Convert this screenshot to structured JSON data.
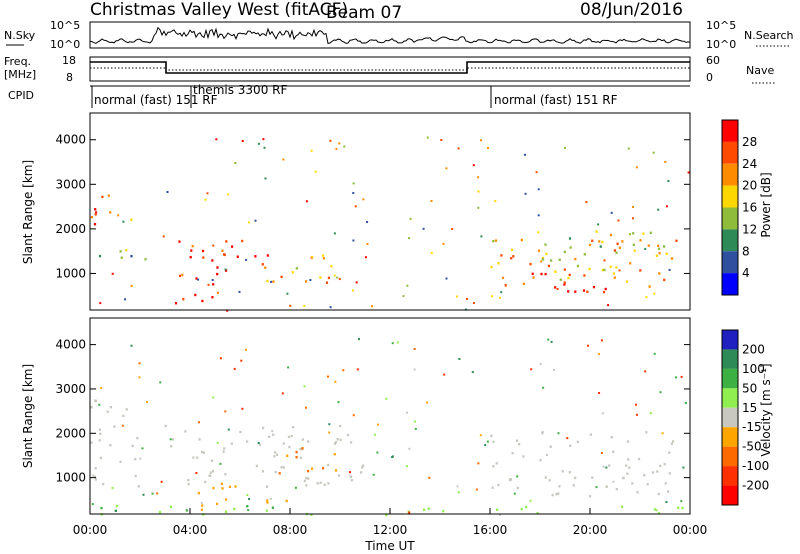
{
  "header": {
    "station": "Christmas Valley West (fitACF)",
    "beam": "Beam 07",
    "date": "08/Jun/2016"
  },
  "strips": {
    "nsky": {
      "label": "N.Sky",
      "tick_top": "10^5",
      "tick_bottom": "10^0"
    },
    "nsearch": {
      "label": "N.Search",
      "tick_top": "10^5",
      "tick_bottom": "10^0"
    },
    "freq": {
      "label_line1": "Freq.",
      "label_line2": "[MHz]",
      "tick_top": "18",
      "tick_bottom": "8"
    },
    "nave": {
      "label": "Nave",
      "tick_top": "60",
      "tick_bottom": "0"
    },
    "cpid": {
      "label": "CPID",
      "segments": [
        {
          "text": "normal (fast) 151 RF"
        },
        {
          "text": "themis 3300 RF"
        },
        {
          "text": "normal (fast) 151 RF"
        }
      ]
    }
  },
  "chart_data": [
    {
      "type": "heatmap",
      "panel": "power",
      "ylabel": "Slant Range [km]",
      "yticks": [
        1000,
        2000,
        3000,
        4000
      ],
      "ylim": [
        180,
        4600
      ],
      "xlim_hours": [
        0,
        24
      ],
      "colorbar": {
        "label": "Power [dB]",
        "ticks": [
          "28",
          "24",
          "20",
          "16",
          "12",
          "8",
          "4"
        ],
        "colors": [
          "#ff0000",
          "#ff4a00",
          "#ff8c00",
          "#ffd700",
          "#8fbc3a",
          "#2e8b57",
          "#2f4f9f",
          "#0000ff"
        ]
      },
      "regions": [
        {
          "t": [
            0.0,
            2.0
          ],
          "r": [
            2100,
            2800
          ],
          "level": 20
        },
        {
          "t": [
            0.0,
            2.5
          ],
          "r": [
            1200,
            1600
          ],
          "level": 10
        },
        {
          "t": [
            3.0,
            5.5
          ],
          "r": [
            350,
            1800
          ],
          "level": 26
        },
        {
          "t": [
            4.0,
            7.5
          ],
          "r": [
            1400,
            1800
          ],
          "level": 25
        },
        {
          "t": [
            6.5,
            10.0
          ],
          "r": [
            700,
            1500
          ],
          "level": 18
        },
        {
          "t": [
            16.0,
            23.5
          ],
          "r": [
            600,
            1800
          ],
          "level": 16
        },
        {
          "t": [
            17.0,
            21.0
          ],
          "r": [
            600,
            1300
          ],
          "level": 26
        },
        {
          "t": [
            18.0,
            23.5
          ],
          "r": [
            1300,
            2000
          ],
          "level": 14
        }
      ]
    },
    {
      "type": "heatmap",
      "panel": "velocity",
      "ylabel": "Slant Range [km]",
      "yticks": [
        1000,
        2000,
        3000,
        4000
      ],
      "ylim": [
        180,
        4600
      ],
      "xlim_hours": [
        0,
        24
      ],
      "xticks": [
        "00:00",
        "04:00",
        "08:00",
        "12:00",
        "16:00",
        "20:00",
        "00:00"
      ],
      "xlabel": "Time UT",
      "colorbar": {
        "label": "Velocity [m s⁻¹]",
        "ticks": [
          "200",
          "100",
          "50",
          "15",
          "-15",
          "-50",
          "-100",
          "-200"
        ],
        "colors": [
          "#2020c0",
          "#2e8b57",
          "#3cb043",
          "#90ee50",
          "#c8c8c0",
          "#ffa500",
          "#ff6a00",
          "#ff3000",
          "#ff0000"
        ]
      },
      "regions": [
        {
          "t": [
            0.0,
            2.5
          ],
          "r": [
            2300,
            2800
          ],
          "level": 0
        },
        {
          "t": [
            0.0,
            11.0
          ],
          "r": [
            800,
            2200
          ],
          "level": 0
        },
        {
          "t": [
            7.5,
            10.0
          ],
          "r": [
            1000,
            1700
          ],
          "level": -50
        },
        {
          "t": [
            4.0,
            8.0
          ],
          "r": [
            300,
            900
          ],
          "level": -30
        },
        {
          "t": [
            16.0,
            23.5
          ],
          "r": [
            600,
            2100
          ],
          "level": 0
        },
        {
          "t": [
            0.0,
            24.0
          ],
          "r": [
            180,
            400
          ],
          "level": 40
        }
      ]
    }
  ]
}
